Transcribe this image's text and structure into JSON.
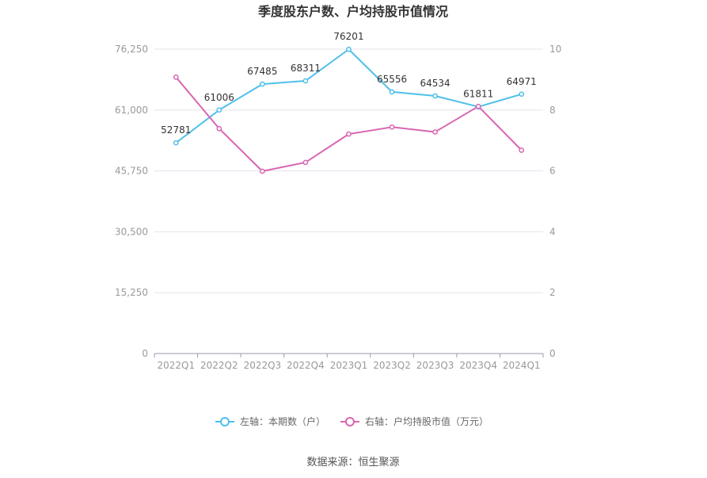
{
  "chart_data": {
    "type": "line",
    "title": "季度股东户数、户均持股市值情况",
    "categories": [
      "2022Q1",
      "2022Q2",
      "2022Q3",
      "2022Q4",
      "2023Q1",
      "2023Q2",
      "2023Q3",
      "2023Q4",
      "2024Q1"
    ],
    "left_axis": {
      "ticks": [
        "0",
        "15,250",
        "30,500",
        "45,750",
        "61,000",
        "76,250"
      ],
      "range": [
        0,
        76250
      ]
    },
    "right_axis": {
      "ticks": [
        "0",
        "2",
        "4",
        "6",
        "8",
        "10"
      ],
      "range": [
        0,
        10
      ]
    },
    "series": [
      {
        "name": "左轴：本期数（户）",
        "axis": "left",
        "color": "#4fc0ea",
        "values": [
          52781,
          61006,
          67485,
          68311,
          76201,
          65556,
          64534,
          61811,
          64971
        ],
        "labels": [
          "52781",
          "61006",
          "67485",
          "68311",
          "76201",
          "65556",
          "64534",
          "61811",
          "64971"
        ]
      },
      {
        "name": "右轴：户均持股市值（万元）",
        "axis": "right",
        "color": "#d966b2",
        "values": [
          9.08,
          7.39,
          5.99,
          6.28,
          7.21,
          7.44,
          7.28,
          8.12,
          6.68
        ]
      }
    ],
    "grid": true,
    "legend_position": "bottom"
  },
  "source_text": "数据来源：恒生聚源"
}
